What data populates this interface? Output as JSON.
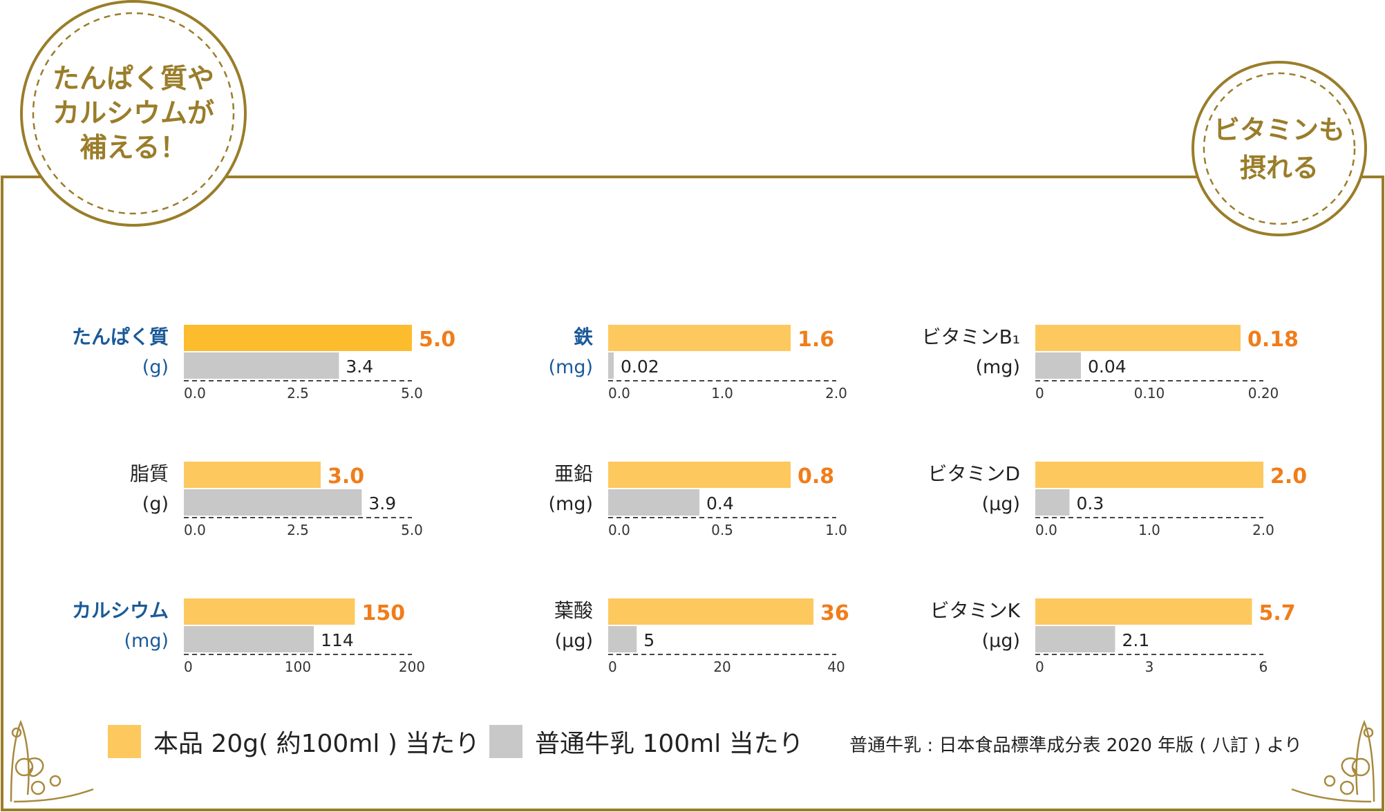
{
  "badges": {
    "left": [
      "たんぱく質や",
      "カルシウムが",
      "補える！"
    ],
    "right": [
      "ビタミンも",
      "摂れる"
    ]
  },
  "colors": {
    "product": "#fdc85e",
    "product_highlight": "#fcbc2e",
    "milk": "#c8c8c8",
    "product_value": "#f07d1a",
    "highlight_label": "#1a5a99",
    "gold": "#9a7d2a"
  },
  "legend": {
    "product_label": "本品 20g( 約100ml ) 当たり",
    "milk_label": "普通牛乳 100ml 当たり",
    "source": "普通牛乳 : 日本食品標準成分表 2020 年版 ( 八訂 ) より"
  },
  "chart_data": [
    {
      "type": "bar",
      "name": "たんぱく質",
      "unit": "(g)",
      "highlight": true,
      "series": [
        {
          "name": "本品 20g( 約100ml ) 当たり",
          "values": [
            5.0
          ]
        },
        {
          "name": "普通牛乳 100ml 当たり",
          "values": [
            3.4
          ]
        }
      ],
      "value_labels": [
        "5.0",
        "3.4"
      ],
      "xlim": [
        0,
        5
      ],
      "ticks": [
        "0.0",
        "2.5",
        "5.0"
      ]
    },
    {
      "type": "bar",
      "name": "鉄",
      "unit": "(mg)",
      "highlight": true,
      "series": [
        {
          "name": "本品 20g( 約100ml ) 当たり",
          "values": [
            1.6
          ]
        },
        {
          "name": "普通牛乳 100ml 当たり",
          "values": [
            0.02
          ]
        }
      ],
      "value_labels": [
        "1.6",
        "0.02"
      ],
      "xlim": [
        0,
        2
      ],
      "ticks": [
        "0.0",
        "1.0",
        "2.0"
      ]
    },
    {
      "type": "bar",
      "name": "ビタミンB₁",
      "unit": "(mg)",
      "highlight": false,
      "series": [
        {
          "name": "本品 20g( 約100ml ) 当たり",
          "values": [
            0.18
          ]
        },
        {
          "name": "普通牛乳 100ml 当たり",
          "values": [
            0.04
          ]
        }
      ],
      "value_labels": [
        "0.18",
        "0.04"
      ],
      "xlim": [
        0,
        0.2
      ],
      "ticks": [
        "0",
        "0.10",
        "0.20"
      ]
    },
    {
      "type": "bar",
      "name": "脂質",
      "unit": "(g)",
      "highlight": false,
      "series": [
        {
          "name": "本品 20g( 約100ml ) 当たり",
          "values": [
            3.0
          ]
        },
        {
          "name": "普通牛乳 100ml 当たり",
          "values": [
            3.9
          ]
        }
      ],
      "value_labels": [
        "3.0",
        "3.9"
      ],
      "xlim": [
        0,
        5
      ],
      "ticks": [
        "0.0",
        "2.5",
        "5.0"
      ]
    },
    {
      "type": "bar",
      "name": "亜鉛",
      "unit": "(mg)",
      "highlight": false,
      "series": [
        {
          "name": "本品 20g( 約100ml ) 当たり",
          "values": [
            0.8
          ]
        },
        {
          "name": "普通牛乳 100ml 当たり",
          "values": [
            0.4
          ]
        }
      ],
      "value_labels": [
        "0.8",
        "0.4"
      ],
      "xlim": [
        0,
        1
      ],
      "ticks": [
        "0.0",
        "0.5",
        "1.0"
      ]
    },
    {
      "type": "bar",
      "name": "ビタミンD",
      "unit": "(μg)",
      "highlight": false,
      "series": [
        {
          "name": "本品 20g( 約100ml ) 当たり",
          "values": [
            2.0
          ]
        },
        {
          "name": "普通牛乳 100ml 当たり",
          "values": [
            0.3
          ]
        }
      ],
      "value_labels": [
        "2.0",
        "0.3"
      ],
      "xlim": [
        0,
        2
      ],
      "ticks": [
        "0.0",
        "1.0",
        "2.0"
      ]
    },
    {
      "type": "bar",
      "name": "カルシウム",
      "unit": "(mg)",
      "highlight": true,
      "series": [
        {
          "name": "本品 20g( 約100ml ) 当たり",
          "values": [
            150
          ]
        },
        {
          "name": "普通牛乳 100ml 当たり",
          "values": [
            114
          ]
        }
      ],
      "value_labels": [
        "150",
        "114"
      ],
      "xlim": [
        0,
        200
      ],
      "ticks": [
        "0",
        "100",
        "200"
      ]
    },
    {
      "type": "bar",
      "name": "葉酸",
      "unit": "(μg)",
      "highlight": false,
      "series": [
        {
          "name": "本品 20g( 約100ml ) 当たり",
          "values": [
            36
          ]
        },
        {
          "name": "普通牛乳 100ml 当たり",
          "values": [
            5
          ]
        }
      ],
      "value_labels": [
        "36",
        "5"
      ],
      "xlim": [
        0,
        40
      ],
      "ticks": [
        "0",
        "20",
        "40"
      ]
    },
    {
      "type": "bar",
      "name": "ビタミンK",
      "unit": "(μg)",
      "highlight": false,
      "series": [
        {
          "name": "本品 20g( 約100ml ) 当たり",
          "values": [
            5.7
          ]
        },
        {
          "name": "普通牛乳 100ml 当たり",
          "values": [
            2.1
          ]
        }
      ],
      "value_labels": [
        "5.7",
        "2.1"
      ],
      "xlim": [
        0,
        6
      ],
      "ticks": [
        "0",
        "3",
        "6"
      ]
    }
  ]
}
